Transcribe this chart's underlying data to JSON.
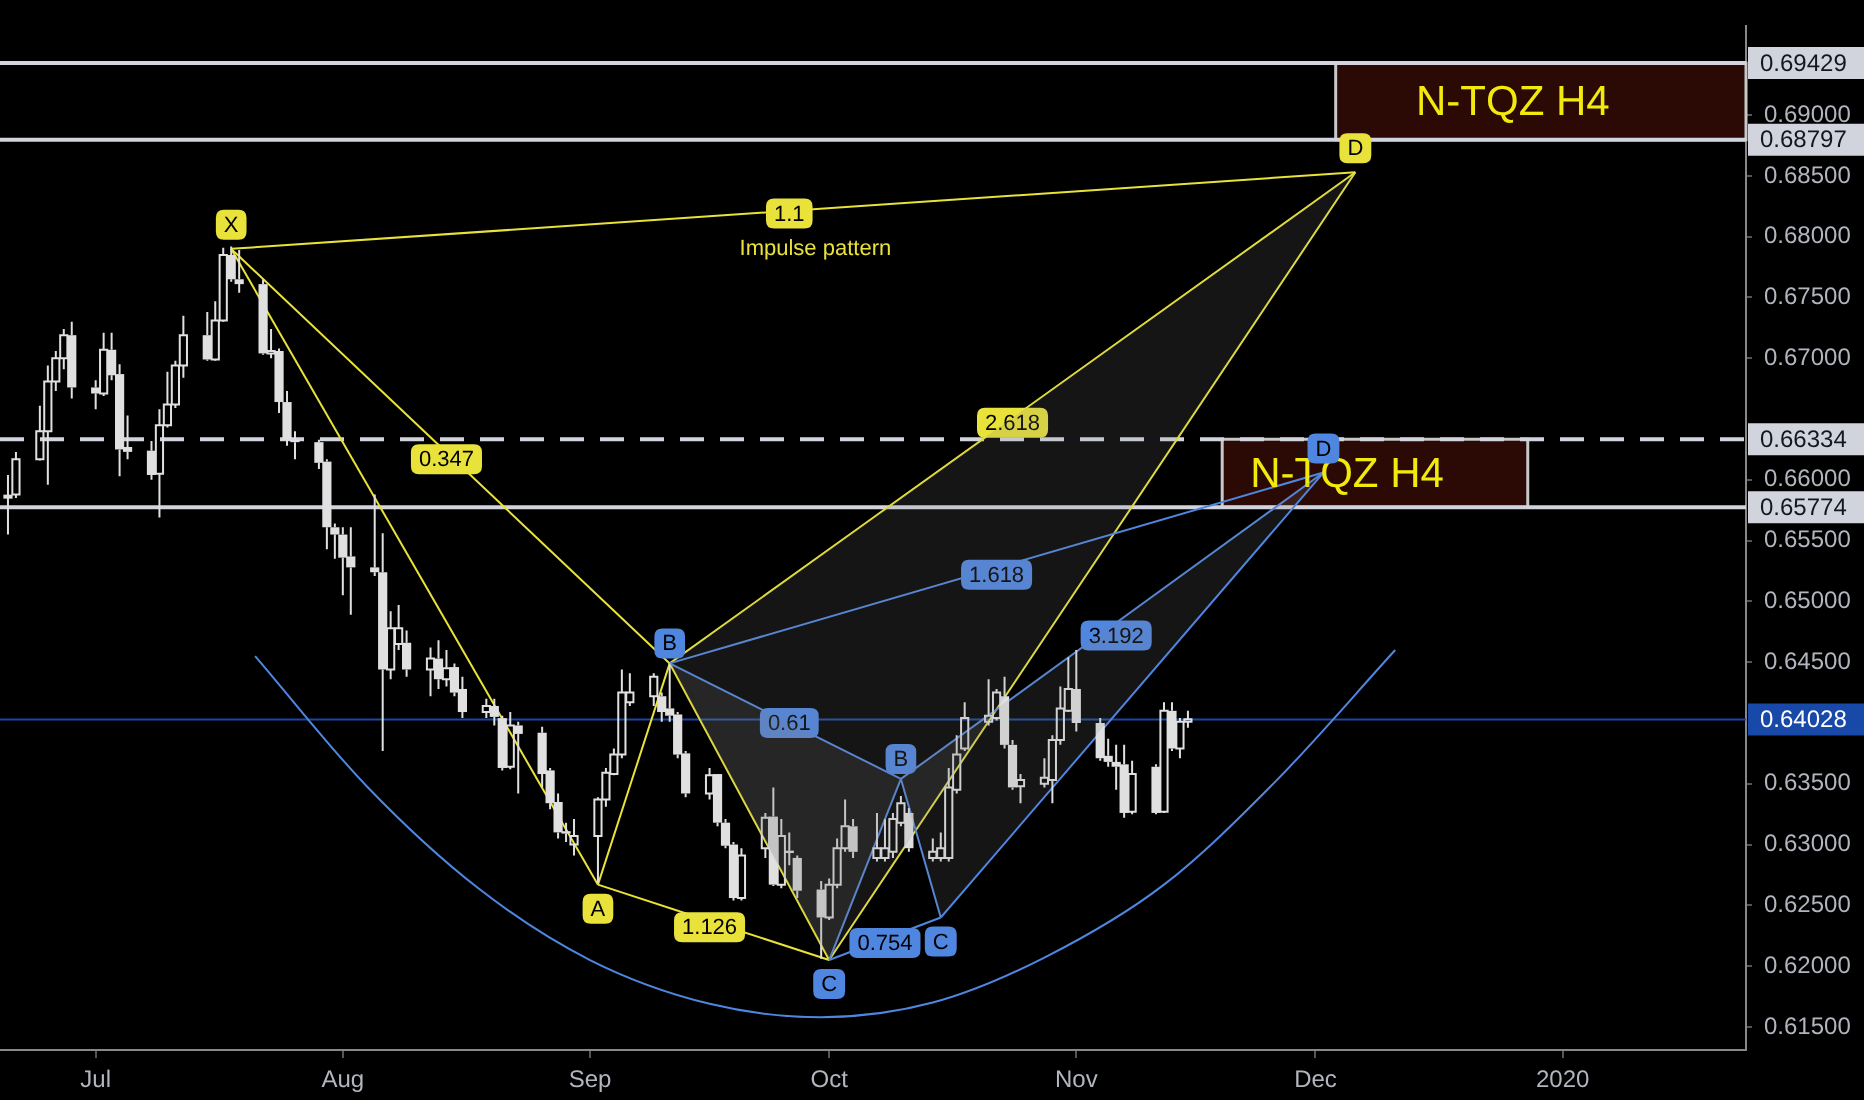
{
  "chart_data": {
    "type": "candlestick",
    "color": "#e0e0e0",
    "marker": "none",
    "x": [
      "2019-06-20",
      "2019-06-21",
      "2019-06-24",
      "2019-06-25",
      "2019-06-26",
      "2019-06-27",
      "2019-06-28",
      "2019-07-01",
      "2019-07-02",
      "2019-07-03",
      "2019-07-04",
      "2019-07-05",
      "2019-07-08",
      "2019-07-09",
      "2019-07-10",
      "2019-07-11",
      "2019-07-12",
      "2019-07-15",
      "2019-07-16",
      "2019-07-17",
      "2019-07-18",
      "2019-07-19",
      "2019-07-22",
      "2019-07-23",
      "2019-07-24",
      "2019-07-25",
      "2019-07-26",
      "2019-07-29",
      "2019-07-30",
      "2019-07-31",
      "2019-08-01",
      "2019-08-02",
      "2019-08-05",
      "2019-08-06",
      "2019-08-07",
      "2019-08-08",
      "2019-08-09",
      "2019-08-12",
      "2019-08-13",
      "2019-08-14",
      "2019-08-15",
      "2019-08-16",
      "2019-08-19",
      "2019-08-20",
      "2019-08-21",
      "2019-08-22",
      "2019-08-23",
      "2019-08-26",
      "2019-08-27",
      "2019-08-28",
      "2019-08-29",
      "2019-08-30",
      "2019-09-02",
      "2019-09-03",
      "2019-09-04",
      "2019-09-05",
      "2019-09-06",
      "2019-09-09",
      "2019-09-10",
      "2019-09-11",
      "2019-09-12",
      "2019-09-13",
      "2019-09-16",
      "2019-09-17",
      "2019-09-18",
      "2019-09-19",
      "2019-09-20",
      "2019-09-23",
      "2019-09-24",
      "2019-09-25",
      "2019-09-26",
      "2019-09-27",
      "2019-09-30",
      "2019-10-01",
      "2019-10-02",
      "2019-10-03",
      "2019-10-04",
      "2019-10-07",
      "2019-10-08",
      "2019-10-09",
      "2019-10-10",
      "2019-10-11",
      "2019-10-14",
      "2019-10-15",
      "2019-10-16",
      "2019-10-17",
      "2019-10-18",
      "2019-10-21",
      "2019-10-22",
      "2019-10-23",
      "2019-10-24",
      "2019-10-25",
      "2019-10-28",
      "2019-10-29",
      "2019-10-30",
      "2019-10-31",
      "2019-11-01",
      "2019-11-04",
      "2019-11-05",
      "2019-11-06",
      "2019-11-07",
      "2019-11-08",
      "2019-11-11",
      "2019-11-12",
      "2019-11-13",
      "2019-11-14",
      "2019-11-15"
    ],
    "ohlc": [
      [
        0.6587,
        0.6604,
        0.6555,
        0.6587
      ],
      [
        0.6588,
        0.6623,
        0.6585,
        0.6617
      ],
      [
        0.6617,
        0.6661,
        0.6616,
        0.664
      ],
      [
        0.664,
        0.6694,
        0.6596,
        0.6681
      ],
      [
        0.6681,
        0.6706,
        0.6673,
        0.67
      ],
      [
        0.67,
        0.6724,
        0.6691,
        0.6719
      ],
      [
        0.6719,
        0.673,
        0.6667,
        0.6676
      ],
      [
        0.6676,
        0.6682,
        0.6658,
        0.6671
      ],
      [
        0.6671,
        0.6721,
        0.6669,
        0.6707
      ],
      [
        0.6707,
        0.6721,
        0.6682,
        0.6686
      ],
      [
        0.6687,
        0.6695,
        0.6603,
        0.6625
      ],
      [
        0.6627,
        0.6653,
        0.6617,
        0.6623
      ],
      [
        0.6624,
        0.6632,
        0.66,
        0.6604
      ],
      [
        0.6605,
        0.6658,
        0.6569,
        0.6645
      ],
      [
        0.6645,
        0.6689,
        0.6643,
        0.6662
      ],
      [
        0.6662,
        0.6698,
        0.6659,
        0.6694
      ],
      [
        0.6694,
        0.6735,
        0.6684,
        0.6719
      ],
      [
        0.6719,
        0.6738,
        0.6698,
        0.6699
      ],
      [
        0.6699,
        0.6747,
        0.6698,
        0.6731
      ],
      [
        0.6731,
        0.6791,
        0.673,
        0.6785
      ],
      [
        0.6785,
        0.6792,
        0.6763,
        0.6765
      ],
      [
        0.6765,
        0.6789,
        0.6754,
        0.6761
      ],
      [
        0.6761,
        0.6765,
        0.6703,
        0.6704
      ],
      [
        0.6704,
        0.6724,
        0.67,
        0.6706
      ],
      [
        0.6706,
        0.6708,
        0.6655,
        0.6664
      ],
      [
        0.6664,
        0.6673,
        0.6628,
        0.6633
      ],
      [
        0.6633,
        0.664,
        0.6617,
        0.6631
      ],
      [
        0.6631,
        0.6633,
        0.6609,
        0.6614
      ],
      [
        0.6615,
        0.6617,
        0.6543,
        0.6561
      ],
      [
        0.6561,
        0.6564,
        0.6535,
        0.6555
      ],
      [
        0.6555,
        0.6561,
        0.6505,
        0.6536
      ],
      [
        0.6537,
        0.6561,
        0.6489,
        0.6528
      ],
      [
        0.6528,
        0.6588,
        0.6521,
        0.6524
      ],
      [
        0.6524,
        0.6556,
        0.6377,
        0.6444
      ],
      [
        0.6444,
        0.6492,
        0.6436,
        0.6478
      ],
      [
        0.6465,
        0.6497,
        0.646,
        0.6478
      ],
      [
        0.6466,
        0.6476,
        0.6438,
        0.6444
      ],
      [
        0.6444,
        0.6462,
        0.6422,
        0.6453
      ],
      [
        0.6453,
        0.6468,
        0.6428,
        0.6436
      ],
      [
        0.6436,
        0.646,
        0.643,
        0.6445
      ],
      [
        0.6446,
        0.6449,
        0.6422,
        0.6425
      ],
      [
        0.6428,
        0.6438,
        0.6404,
        0.6409
      ],
      [
        0.6409,
        0.642,
        0.6404,
        0.6414
      ],
      [
        0.6414,
        0.642,
        0.6398,
        0.6405
      ],
      [
        0.6404,
        0.6406,
        0.6361,
        0.6363
      ],
      [
        0.6364,
        0.6409,
        0.6362,
        0.6398
      ],
      [
        0.6398,
        0.6401,
        0.6342,
        0.6391
      ],
      [
        0.6392,
        0.6397,
        0.6347,
        0.6358
      ],
      [
        0.6361,
        0.6363,
        0.6329,
        0.6334
      ],
      [
        0.6335,
        0.6342,
        0.6305,
        0.631
      ],
      [
        0.6311,
        0.6318,
        0.6302,
        0.6309
      ],
      [
        0.63,
        0.6321,
        0.6291,
        0.6307
      ],
      [
        0.6307,
        0.6339,
        0.6268,
        0.6337
      ],
      [
        0.6337,
        0.6363,
        0.6331,
        0.6359
      ],
      [
        0.6358,
        0.6379,
        0.6357,
        0.6374
      ],
      [
        0.6374,
        0.6444,
        0.6371,
        0.6425
      ],
      [
        0.6417,
        0.6441,
        0.6414,
        0.6425
      ],
      [
        0.6422,
        0.6441,
        0.6414,
        0.6438
      ],
      [
        0.6422,
        0.6425,
        0.6401,
        0.6409
      ],
      [
        0.6412,
        0.6449,
        0.6401,
        0.6406
      ],
      [
        0.6407,
        0.6409,
        0.6371,
        0.6374
      ],
      [
        0.6375,
        0.6377,
        0.6339,
        0.6342
      ],
      [
        0.6342,
        0.6363,
        0.6337,
        0.6357
      ],
      [
        0.6358,
        0.6358,
        0.6315,
        0.6318
      ],
      [
        0.6318,
        0.6321,
        0.6297,
        0.6299
      ],
      [
        0.63,
        0.6302,
        0.6254,
        0.6256
      ],
      [
        0.6256,
        0.6297,
        0.6254,
        0.6291
      ],
      [
        0.6297,
        0.6326,
        0.6289,
        0.6322
      ],
      [
        0.6323,
        0.6347,
        0.6266,
        0.6267
      ],
      [
        0.6267,
        0.6321,
        0.6264,
        0.6307
      ],
      [
        0.6295,
        0.631,
        0.6283,
        0.6293
      ],
      [
        0.6289,
        0.6291,
        0.6256,
        0.6262
      ],
      [
        0.6263,
        0.627,
        0.6206,
        0.624
      ],
      [
        0.624,
        0.6272,
        0.6238,
        0.6267
      ],
      [
        0.6267,
        0.6305,
        0.6264,
        0.6297
      ],
      [
        0.6297,
        0.6337,
        0.6294,
        0.6315
      ],
      [
        0.6315,
        0.6321,
        0.6289,
        0.6294
      ],
      [
        0.6289,
        0.6326,
        0.6286,
        0.6297
      ],
      [
        0.6289,
        0.6321,
        0.6286,
        0.6297
      ],
      [
        0.6294,
        0.6326,
        0.6289,
        0.6321
      ],
      [
        0.6318,
        0.634,
        0.6315,
        0.6334
      ],
      [
        0.6326,
        0.633,
        0.6294,
        0.6297
      ],
      [
        0.6289,
        0.6305,
        0.6286,
        0.6294
      ],
      [
        0.6289,
        0.631,
        0.6286,
        0.6297
      ],
      [
        0.6289,
        0.6363,
        0.6286,
        0.6347
      ],
      [
        0.6345,
        0.639,
        0.6342,
        0.6374
      ],
      [
        0.6379,
        0.6417,
        0.6377,
        0.6404
      ],
      [
        0.6401,
        0.6436,
        0.6398,
        0.6406
      ],
      [
        0.6404,
        0.6428,
        0.6402,
        0.6425
      ],
      [
        0.6422,
        0.6438,
        0.6379,
        0.6382
      ],
      [
        0.6382,
        0.6386,
        0.6345,
        0.6347
      ],
      [
        0.6348,
        0.6358,
        0.6334,
        0.6353
      ],
      [
        0.635,
        0.6371,
        0.6347,
        0.6355
      ],
      [
        0.6353,
        0.639,
        0.6334,
        0.6386
      ],
      [
        0.6386,
        0.643,
        0.6382,
        0.6412
      ],
      [
        0.641,
        0.6454,
        0.6409,
        0.6428
      ],
      [
        0.6428,
        0.646,
        0.6393,
        0.64
      ],
      [
        0.64,
        0.6404,
        0.6369,
        0.6371
      ],
      [
        0.6373,
        0.6387,
        0.6364,
        0.6368
      ],
      [
        0.6368,
        0.6382,
        0.6345,
        0.6364
      ],
      [
        0.6366,
        0.6382,
        0.6322,
        0.6326
      ],
      [
        0.6327,
        0.6369,
        0.6325,
        0.6358
      ],
      [
        0.6364,
        0.6366,
        0.6325,
        0.6326
      ],
      [
        0.6327,
        0.6417,
        0.6326,
        0.641
      ],
      [
        0.641,
        0.6417,
        0.6377,
        0.6379
      ],
      [
        0.6379,
        0.6404,
        0.6371,
        0.6401
      ],
      [
        0.6401,
        0.641,
        0.6396,
        0.6403
      ]
    ],
    "series": [
      {
        "type": "line",
        "color": "#4f86e0",
        "x": [
          "2019-10-01",
          "2019-10-10"
        ],
        "values": [
          0.6205,
          0.6354
        ]
      },
      {
        "type": "line",
        "color": "#4f86e0",
        "x": [
          "2019-09-11",
          "2019-10-10"
        ],
        "values": [
          0.6449,
          0.6354
        ]
      },
      {
        "type": "line",
        "color": "#4f86e0",
        "x": [
          "2019-10-10",
          "2019-10-15"
        ],
        "values": [
          0.6354,
          0.624
        ]
      },
      {
        "type": "line",
        "color": "#4f86e0",
        "x": [
          "2019-10-15",
          "2019-12-02"
        ],
        "values": [
          0.624,
          0.6606
        ]
      },
      {
        "type": "line",
        "color": "#4f86e0",
        "x": [
          "2019-10-10",
          "2019-12-02"
        ],
        "values": [
          0.6354,
          0.6606
        ]
      },
      {
        "type": "line",
        "color": "#4f86e0",
        "x": [
          "2019-09-11",
          "2019-12-02"
        ],
        "values": [
          0.6449,
          0.6606
        ]
      },
      {
        "type": "line",
        "color": "#4f86e0",
        "x": [
          "2019-10-01",
          "2019-10-15"
        ],
        "values": [
          0.6205,
          0.624
        ]
      },
      {
        "type": "line",
        "color": "#e8e23a",
        "x": [
          "2019-07-18",
          "2019-09-02"
        ],
        "values": [
          0.679,
          0.6267
        ]
      },
      {
        "type": "line",
        "color": "#e8e23a",
        "x": [
          "2019-09-02",
          "2019-09-11"
        ],
        "values": [
          0.6267,
          0.6449
        ]
      },
      {
        "type": "line",
        "color": "#e8e23a",
        "x": [
          "2019-07-18",
          "2019-09-11"
        ],
        "values": [
          0.679,
          0.6449
        ]
      },
      {
        "type": "line",
        "color": "#e8e23a",
        "x": [
          "2019-09-11",
          "2019-10-01"
        ],
        "values": [
          0.6449,
          0.6205
        ]
      },
      {
        "type": "line",
        "color": "#e8e23a",
        "x": [
          "2019-10-01",
          "2019-12-06"
        ],
        "values": [
          0.6205,
          0.6853
        ]
      },
      {
        "type": "line",
        "color": "#e8e23a",
        "x": [
          "2019-09-11",
          "2019-12-06"
        ],
        "values": [
          0.6449,
          0.6853
        ]
      },
      {
        "type": "line",
        "color": "#e8e23a",
        "x": [
          "2019-07-18",
          "2019-12-06"
        ],
        "values": [
          0.679,
          0.6853
        ]
      },
      {
        "type": "line",
        "color": "#e8e23a",
        "x": [
          "2019-09-02",
          "2019-10-01"
        ],
        "values": [
          0.6267,
          0.6205
        ]
      },
      {
        "type": "line",
        "color": "#4f86e0",
        "x": [
          "2019-07-21",
          "2019-08-04",
          "2019-08-18",
          "2019-09-01",
          "2019-09-16",
          "2019-09-30",
          "2019-10-14",
          "2019-10-28",
          "2019-11-12",
          "2019-11-26",
          "2019-12-11"
        ],
        "values": [
          0.6455,
          0.6348,
          0.6264,
          0.6205,
          0.6169,
          0.6158,
          0.617,
          0.6207,
          0.6267,
          0.6352,
          0.646
        ]
      }
    ],
    "xlim": [
      "2019-06-19",
      "2020-01-24"
    ],
    "xticks": [
      {
        "value": "2019-07-01",
        "label": "Jul"
      },
      {
        "value": "2019-08-01",
        "label": "Aug"
      },
      {
        "value": "2019-09-01",
        "label": "Sep"
      },
      {
        "value": "2019-10-01",
        "label": "Oct"
      },
      {
        "value": "2019-11-01",
        "label": "Nov"
      },
      {
        "value": "2019-12-01",
        "label": "Dec"
      },
      {
        "value": "2020-01-01",
        "label": "2020"
      }
    ],
    "ylim": [
      0.6131,
      0.6973
    ],
    "yticks": [
      {
        "value": 0.615,
        "label": "0.61500"
      },
      {
        "value": 0.62,
        "label": "0.62000"
      },
      {
        "value": 0.625,
        "label": "0.62500"
      },
      {
        "value": 0.63,
        "label": "0.63000"
      },
      {
        "value": 0.635,
        "label": "0.63500"
      },
      {
        "value": 0.645,
        "label": "0.64500"
      },
      {
        "value": 0.65,
        "label": "0.65000"
      },
      {
        "value": 0.655,
        "label": "0.65500"
      },
      {
        "value": 0.66,
        "label": "0.66000"
      },
      {
        "value": 0.67,
        "label": "0.67000"
      },
      {
        "value": 0.675,
        "label": "0.67500"
      },
      {
        "value": 0.68,
        "label": "0.68000"
      },
      {
        "value": 0.685,
        "label": "0.68500"
      },
      {
        "value": 0.69,
        "label": "0.69000"
      }
    ],
    "ref_lines": [
      {
        "axis": "y",
        "value": 0.69429,
        "label": "0.69429",
        "color": "#d1d4dc"
      },
      {
        "axis": "y",
        "value": 0.68797,
        "label": "0.68797",
        "color": "#d1d4dc"
      },
      {
        "axis": "y",
        "value": 0.66334,
        "label": "0.66334",
        "color": "#d1d4dc",
        "line_style": "dashed"
      },
      {
        "axis": "y",
        "value": 0.65774,
        "label": "0.65774",
        "color": "#d1d4dc"
      },
      {
        "axis": "y",
        "value": 0.64028,
        "label": "0.64028",
        "color": "#1848a8"
      }
    ],
    "bands": [
      {
        "axis": "y",
        "from": 0.68797,
        "to": 0.69429,
        "label": "N-TQZ H4",
        "color": "#2b0a05"
      },
      {
        "axis": "y",
        "from": 0.65774,
        "to": 0.66334,
        "label": "N-TQZ H4",
        "color": "#2b0a05"
      }
    ],
    "annotations": [
      {
        "text": "X",
        "x": "2019-07-18",
        "y": 0.679
      },
      {
        "text": "A",
        "x": "2019-09-02",
        "y": 0.6267
      },
      {
        "text": "B",
        "x": "2019-09-11",
        "y": 0.6449
      },
      {
        "text": "C",
        "x": "2019-10-01",
        "y": 0.6205
      },
      {
        "text": "B",
        "x": "2019-10-10",
        "y": 0.6354
      },
      {
        "text": "C",
        "x": "2019-10-15",
        "y": 0.624
      },
      {
        "text": "D",
        "x": "2019-12-02",
        "y": 0.6606
      },
      {
        "text": "D",
        "x": "2019-12-06",
        "y": 0.6853
      },
      {
        "text": "1.1",
        "x": "2019-09-26",
        "y": 0.6819
      },
      {
        "text": "0.347",
        "x": "2019-08-14",
        "y": 0.6617
      },
      {
        "text": "2.618",
        "x": "2019-10-24",
        "y": 0.6647
      },
      {
        "text": "1.126",
        "x": "2019-09-16",
        "y": 0.6232
      },
      {
        "text": "0.61",
        "x": "2019-09-26",
        "y": 0.64
      },
      {
        "text": "1.618",
        "x": "2019-10-22",
        "y": 0.6522
      },
      {
        "text": "3.192",
        "x": "2019-11-06",
        "y": 0.6472
      },
      {
        "text": "0.754",
        "x": "2019-10-08",
        "y": 0.6219
      },
      "Impulse pattern"
    ]
  }
}
